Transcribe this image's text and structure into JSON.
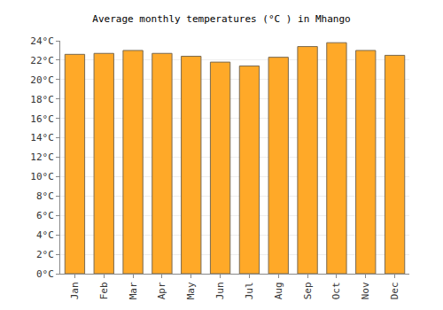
{
  "chart_data": {
    "type": "bar",
    "title": "Average monthly temperatures (°C ) in Mhango",
    "categories": [
      "Jan",
      "Feb",
      "Mar",
      "Apr",
      "May",
      "Jun",
      "Jul",
      "Aug",
      "Sep",
      "Oct",
      "Nov",
      "Dec"
    ],
    "values": [
      22.6,
      22.7,
      23.0,
      22.7,
      22.4,
      21.8,
      21.4,
      22.3,
      23.4,
      23.8,
      23.0,
      22.5
    ],
    "color": "#ffa928",
    "ylim": [
      0,
      24
    ],
    "yticks": [
      {
        "value": 0,
        "label": "0°C"
      },
      {
        "value": 2,
        "label": "2°C"
      },
      {
        "value": 4,
        "label": "4°C"
      },
      {
        "value": 6,
        "label": "6°C"
      },
      {
        "value": 8,
        "label": "8°C"
      },
      {
        "value": 10,
        "label": "10°C"
      },
      {
        "value": 12,
        "label": "12°C"
      },
      {
        "value": 14,
        "label": "14°C"
      },
      {
        "value": 16,
        "label": "16°C"
      },
      {
        "value": 18,
        "label": "18°C"
      },
      {
        "value": 20,
        "label": "20°C"
      },
      {
        "value": 22,
        "label": "22°C"
      },
      {
        "value": 24,
        "label": "24°C"
      }
    ],
    "grid": true
  }
}
